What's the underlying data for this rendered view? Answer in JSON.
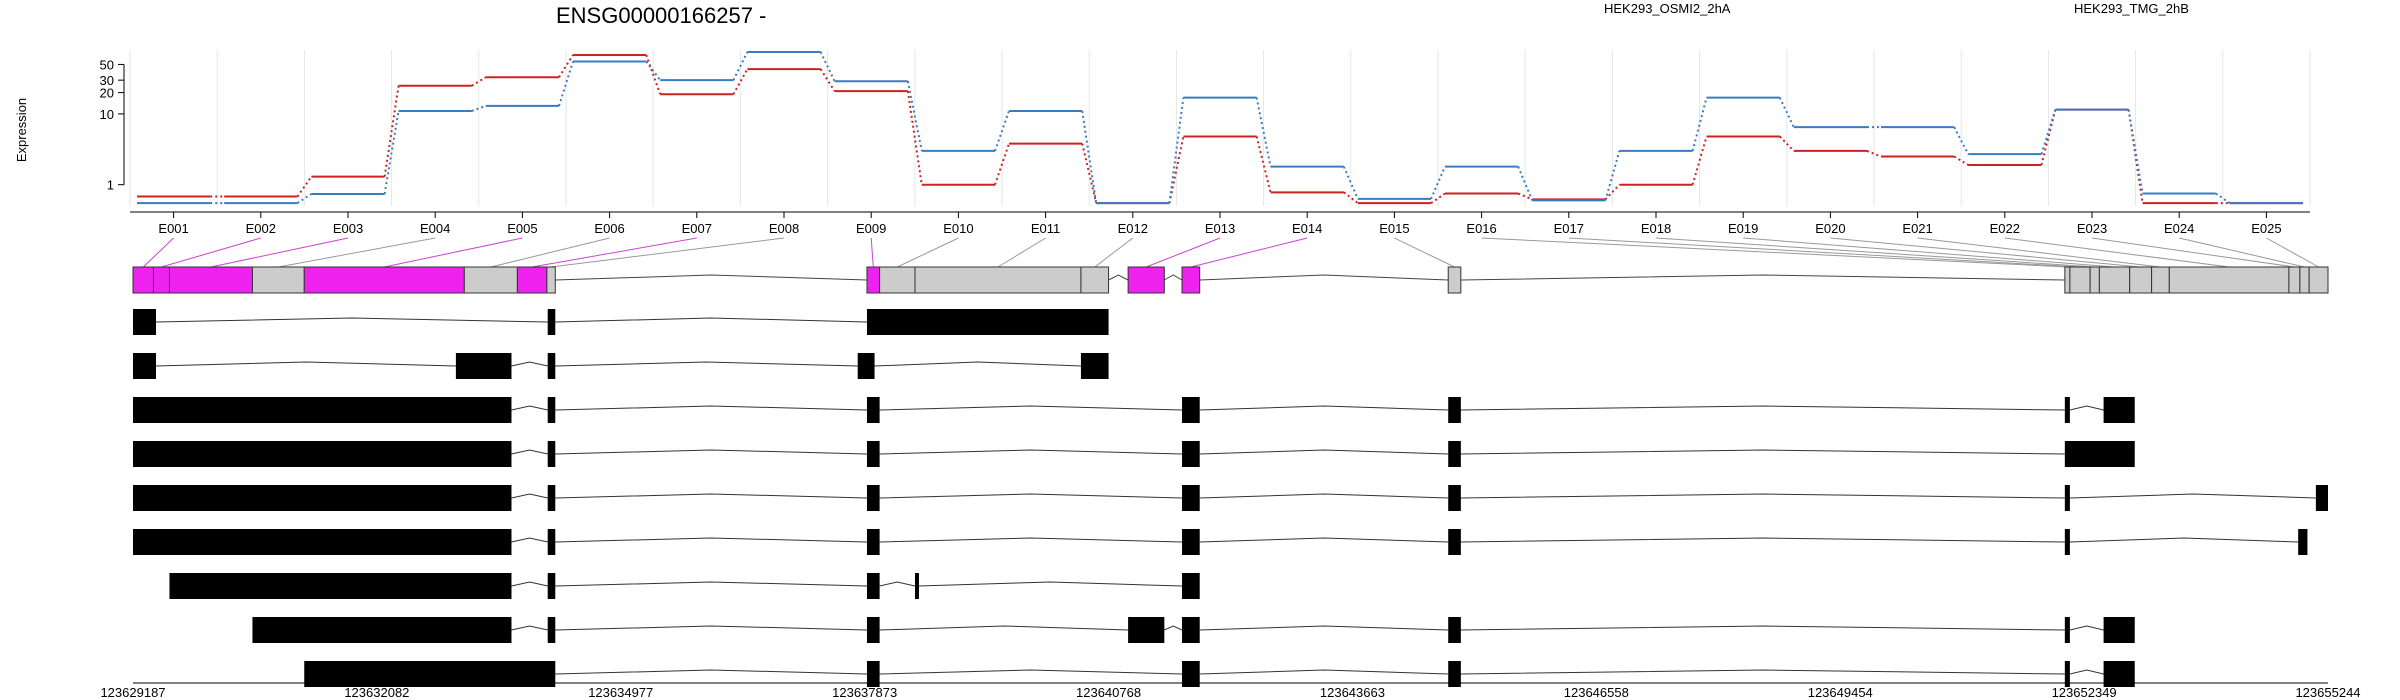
{
  "chart_data": {
    "type": "line",
    "title": "ENSG00000166257 -",
    "ylabel": "Expression",
    "yscale": "log",
    "yticks": [
      1,
      10,
      20,
      30,
      50
    ],
    "ylim": [
      0.5,
      80
    ],
    "categories": [
      "E001",
      "E002",
      "E003",
      "E004",
      "E005",
      "E006",
      "E007",
      "E008",
      "E009",
      "E010",
      "E011",
      "E012",
      "E013",
      "E014",
      "E015",
      "E016",
      "E017",
      "E018",
      "E019",
      "E020",
      "E021",
      "E022",
      "E023",
      "E024",
      "E025"
    ],
    "series": [
      {
        "name": "HEK293_OSMI2_2hA",
        "color": "#cc2222",
        "values": [
          0.68,
          0.68,
          1.3,
          25,
          33,
          68,
          19,
          43,
          21,
          1.0,
          3.8,
          0.55,
          4.8,
          0.78,
          0.55,
          0.75,
          0.62,
          1.0,
          4.8,
          3.0,
          2.5,
          1.9,
          11.5,
          0.55,
          0.55
        ]
      },
      {
        "name": "HEK293_TMG_2hB",
        "color": "#3a7cc0",
        "values": [
          0.55,
          0.55,
          0.74,
          11,
          13,
          55,
          30,
          75,
          29,
          3.0,
          11,
          0.55,
          17,
          1.8,
          0.63,
          1.8,
          0.6,
          3.0,
          17,
          6.5,
          6.5,
          2.7,
          11.5,
          0.75,
          0.55
        ]
      }
    ],
    "genome_axis": {
      "min": 123629187,
      "max": 123655244,
      "ticks": [
        "123629187",
        "123632082",
        "123634977",
        "123637873",
        "123640768",
        "123643663",
        "123646558",
        "123649454",
        "123652349",
        "123655244"
      ]
    },
    "exon_bins": [
      {
        "id": "E001",
        "start": 123629187,
        "end": 123629430,
        "highlighted": true
      },
      {
        "id": "E002",
        "start": 123629430,
        "end": 123629620,
        "highlighted": true
      },
      {
        "id": "E003",
        "start": 123629620,
        "end": 123630605,
        "highlighted": true
      },
      {
        "id": "E004",
        "start": 123630605,
        "end": 123631220,
        "highlighted": false
      },
      {
        "id": "E005",
        "start": 123631220,
        "end": 123633120,
        "highlighted": true
      },
      {
        "id": "E006",
        "start": 123633120,
        "end": 123633750,
        "highlighted": false
      },
      {
        "id": "E007",
        "start": 123633750,
        "end": 123634100,
        "highlighted": true
      },
      {
        "id": "E008",
        "start": 123634100,
        "end": 123634200,
        "highlighted": false
      },
      {
        "id": "E009",
        "start": 123637900,
        "end": 123638050,
        "highlighted": true
      },
      {
        "id": "E010",
        "start": 123638050,
        "end": 123638470,
        "highlighted": false
      },
      {
        "id": "E011",
        "start": 123638470,
        "end": 123640440,
        "highlighted": false
      },
      {
        "id": "E012",
        "start": 123640440,
        "end": 123640768,
        "highlighted": false
      },
      {
        "id": "E013",
        "start": 123641000,
        "end": 123641430,
        "highlighted": true
      },
      {
        "id": "E014",
        "start": 123641640,
        "end": 123641850,
        "highlighted": true
      },
      {
        "id": "E015",
        "start": 123644800,
        "end": 123644950,
        "highlighted": false
      },
      {
        "id": "E016",
        "start": 123652120,
        "end": 123652180,
        "highlighted": false
      },
      {
        "id": "E017",
        "start": 123652180,
        "end": 123652420,
        "highlighted": false
      },
      {
        "id": "E018",
        "start": 123652420,
        "end": 123652530,
        "highlighted": false
      },
      {
        "id": "E019",
        "start": 123652530,
        "end": 123652890,
        "highlighted": false
      },
      {
        "id": "E020",
        "start": 123652890,
        "end": 123653150,
        "highlighted": false
      },
      {
        "id": "E021",
        "start": 123653150,
        "end": 123653360,
        "highlighted": false
      },
      {
        "id": "E022",
        "start": 123653360,
        "end": 123654780,
        "highlighted": false
      },
      {
        "id": "E023",
        "start": 123654780,
        "end": 123654910,
        "highlighted": false
      },
      {
        "id": "E024",
        "start": 123654910,
        "end": 123655020,
        "highlighted": false
      },
      {
        "id": "E025",
        "start": 123655020,
        "end": 123655244,
        "highlighted": false
      }
    ],
    "transcripts": [
      {
        "exons": [
          [
            123629187,
            123629460
          ],
          [
            123634110,
            123634200
          ],
          [
            123637900,
            123640768
          ]
        ]
      },
      {
        "exons": [
          [
            123629187,
            123629460
          ],
          [
            123633020,
            123633680
          ],
          [
            123634110,
            123634200
          ],
          [
            123637790,
            123637990
          ],
          [
            123640440,
            123640768
          ]
        ]
      },
      {
        "exons": [
          [
            123629187,
            123633680
          ],
          [
            123634110,
            123634200
          ],
          [
            123637900,
            123638050
          ],
          [
            123641640,
            123641850
          ],
          [
            123644800,
            123644950
          ],
          [
            123652120,
            123652180
          ],
          [
            123652580,
            123652950
          ]
        ]
      },
      {
        "exons": [
          [
            123629187,
            123633680
          ],
          [
            123634110,
            123634200
          ],
          [
            123637900,
            123638050
          ],
          [
            123641640,
            123641850
          ],
          [
            123644800,
            123644950
          ],
          [
            123652120,
            123652950
          ]
        ]
      },
      {
        "exons": [
          [
            123629187,
            123633680
          ],
          [
            123634110,
            123634200
          ],
          [
            123637900,
            123638050
          ],
          [
            123641640,
            123641850
          ],
          [
            123644800,
            123644950
          ],
          [
            123652120,
            123652180
          ],
          [
            123655100,
            123655244
          ]
        ]
      },
      {
        "exons": [
          [
            123629187,
            123633680
          ],
          [
            123634110,
            123634200
          ],
          [
            123637900,
            123638050
          ],
          [
            123641640,
            123641850
          ],
          [
            123644800,
            123644950
          ],
          [
            123652120,
            123652180
          ],
          [
            123654890,
            123655000
          ]
        ]
      },
      {
        "exons": [
          [
            123629620,
            123633680
          ],
          [
            123634110,
            123634200
          ],
          [
            123637900,
            123638050
          ],
          [
            123638470,
            123638510
          ],
          [
            123641640,
            123641850
          ]
        ]
      },
      {
        "exons": [
          [
            123630605,
            123633680
          ],
          [
            123634110,
            123634200
          ],
          [
            123637900,
            123638050
          ],
          [
            123641000,
            123641430
          ],
          [
            123641640,
            123641850
          ],
          [
            123644800,
            123644950
          ],
          [
            123652120,
            123652180
          ],
          [
            123652580,
            123652950
          ]
        ]
      },
      {
        "exons": [
          [
            123631220,
            123634200
          ],
          [
            123637900,
            123638050
          ],
          [
            123641640,
            123641850
          ],
          [
            123644800,
            123644950
          ],
          [
            123652120,
            123652180
          ],
          [
            123652580,
            123652950
          ]
        ]
      }
    ],
    "colors": {
      "highlight": "#ee22ee",
      "exon_bin": "#cccccc",
      "transcript_exon": "#000000"
    }
  }
}
